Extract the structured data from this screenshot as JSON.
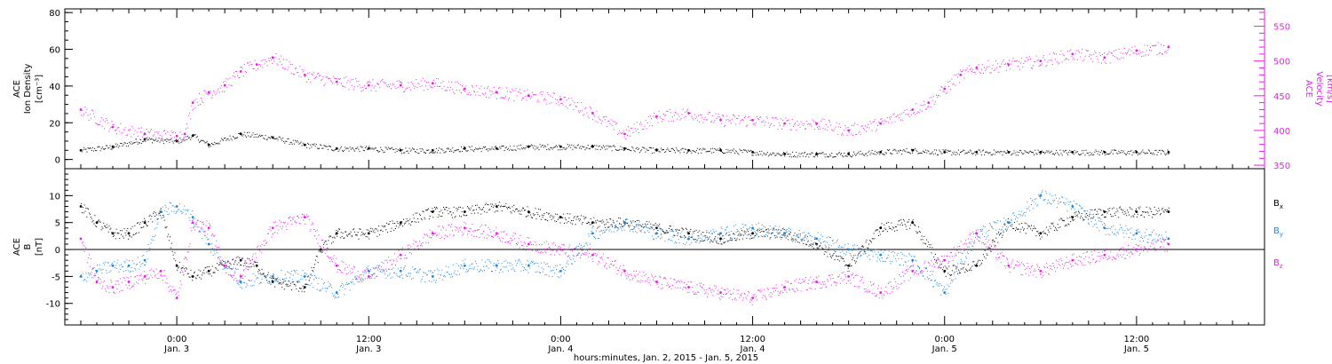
{
  "footer_label": "hours:minutes, Jan. 2, 2015 - Jan. 5, 2015",
  "colors": {
    "bx": "#000000",
    "by": "#1f86d6",
    "bz": "#e61ee6",
    "speed": "#e61ee6",
    "density": "#000000",
    "axis": "#000000"
  },
  "chart_data": [
    {
      "type": "scatter",
      "title": "",
      "ylabel_lines": [
        "ACE",
        "Ion Density",
        "[cm⁻³]"
      ],
      "y2label_lines": [
        "ACE",
        "Velocity",
        "[km/s]"
      ],
      "ylim": [
        -5,
        82
      ],
      "y2lim": [
        345,
        575
      ],
      "yticks": [
        0,
        20,
        40,
        60,
        80
      ],
      "y2ticks": [
        350,
        400,
        450,
        500,
        550
      ],
      "series": [
        {
          "axis": "left",
          "x": [
            -6,
            -4,
            -2,
            0,
            1,
            2,
            4,
            6,
            8,
            10,
            12,
            14,
            16,
            18,
            20,
            22,
            24,
            26,
            28,
            30,
            32,
            34,
            36,
            38,
            40,
            42,
            44,
            46,
            48,
            50,
            52,
            54,
            56,
            58,
            60,
            62
          ],
          "values": [
            5,
            7,
            11,
            10,
            13,
            8,
            14,
            12,
            8,
            6,
            6,
            5,
            5,
            6,
            6,
            7,
            7,
            7,
            6,
            5,
            5,
            5,
            4,
            3,
            3,
            3,
            4,
            5,
            4,
            4,
            4,
            4,
            4,
            4,
            4,
            4
          ]
        },
        {
          "axis": "right",
          "x": [
            -6,
            -4,
            -2,
            0,
            0.5,
            1,
            2,
            3,
            4,
            5,
            6,
            8,
            10,
            12,
            14,
            16,
            18,
            20,
            22,
            24,
            26,
            28,
            30,
            32,
            34,
            36,
            38,
            40,
            42,
            44,
            46,
            47,
            48,
            49,
            50,
            52,
            54,
            56,
            58,
            60,
            62
          ],
          "values": [
            430,
            405,
            395,
            392,
            395,
            440,
            455,
            465,
            485,
            495,
            505,
            480,
            470,
            465,
            465,
            468,
            460,
            455,
            450,
            445,
            425,
            395,
            420,
            425,
            415,
            415,
            410,
            410,
            400,
            410,
            430,
            440,
            460,
            480,
            490,
            495,
            500,
            510,
            505,
            515,
            520
          ]
        }
      ]
    },
    {
      "type": "scatter",
      "title": "",
      "ylabel_lines": [
        "ACE",
        "B",
        "[nT]"
      ],
      "ylim": [
        -14,
        15
      ],
      "yticks": [
        -10,
        -5,
        0,
        5,
        10
      ],
      "legend": [
        {
          "label": "B",
          "sub": "x"
        },
        {
          "label": "B",
          "sub": "y"
        },
        {
          "label": "B",
          "sub": "z"
        }
      ],
      "series": [
        {
          "name": "Bx",
          "x": [
            -6,
            -5,
            -4,
            -3,
            -2,
            -1,
            0,
            1,
            2,
            3,
            4,
            5,
            6,
            8,
            9,
            10,
            12,
            14,
            16,
            18,
            20,
            22,
            24,
            26,
            28,
            30,
            32,
            34,
            36,
            38,
            40,
            42,
            44,
            46,
            48,
            50,
            52,
            54,
            56,
            58,
            60,
            62
          ],
          "values": [
            8,
            5,
            3,
            3,
            5,
            7,
            -3,
            -5,
            -4,
            -3,
            -2,
            -3,
            -6,
            -7,
            0,
            3,
            3,
            5,
            7,
            7,
            8,
            7,
            6,
            5,
            5,
            4,
            3,
            2,
            3,
            3,
            1,
            -3,
            4,
            5,
            -4,
            -3,
            5,
            3,
            6,
            7,
            7,
            7
          ]
        },
        {
          "name": "By",
          "x": [
            -6,
            -5,
            -4,
            -3,
            -2,
            -1,
            0,
            1,
            2,
            3,
            4,
            6,
            8,
            10,
            12,
            14,
            16,
            18,
            20,
            22,
            24,
            26,
            28,
            30,
            32,
            34,
            36,
            38,
            40,
            42,
            44,
            46,
            48,
            50,
            52,
            54,
            56,
            58,
            60,
            62
          ],
          "values": [
            -5,
            -4,
            -3,
            -3,
            -2,
            7,
            8,
            6,
            1,
            -3,
            -6,
            -5,
            -5,
            -8,
            -4,
            -4,
            -5,
            -3,
            -3,
            -3,
            -4,
            3,
            5,
            3,
            2,
            3,
            4,
            3,
            2,
            0,
            -1,
            -2,
            -8,
            3,
            5,
            10,
            8,
            4,
            3,
            2
          ]
        },
        {
          "name": "Bz",
          "x": [
            -6,
            -5,
            -4,
            -3,
            -2,
            -1,
            0,
            1,
            2,
            3,
            4,
            6,
            8,
            10,
            12,
            14,
            16,
            18,
            20,
            22,
            24,
            26,
            28,
            30,
            32,
            34,
            36,
            38,
            40,
            42,
            44,
            46,
            48,
            50,
            52,
            54,
            56,
            58,
            60,
            62
          ],
          "values": [
            2,
            -6,
            -7,
            -6,
            -5,
            -4,
            -9,
            5,
            4,
            -3,
            -5,
            4,
            6,
            -3,
            -5,
            -1,
            3,
            4,
            3,
            1,
            0,
            -1,
            -4,
            -6,
            -7,
            -8,
            -9,
            -7,
            -6,
            -5,
            -8,
            -4,
            -2,
            3,
            -3,
            -4,
            -2,
            -1,
            0,
            1
          ]
        }
      ]
    }
  ],
  "time_axis": {
    "range_hours": [
      -7,
      68
    ],
    "ticks": [
      {
        "hours": 0,
        "time": "0:00",
        "date": "Jan. 3"
      },
      {
        "hours": 12,
        "time": "12:00",
        "date": "Jan. 3"
      },
      {
        "hours": 24,
        "time": "0:00",
        "date": "Jan. 4"
      },
      {
        "hours": 36,
        "time": "12:00",
        "date": "Jan. 4"
      },
      {
        "hours": 48,
        "time": "0:00",
        "date": "Jan. 5"
      },
      {
        "hours": 60,
        "time": "12:00",
        "date": "Jan. 5"
      }
    ]
  }
}
